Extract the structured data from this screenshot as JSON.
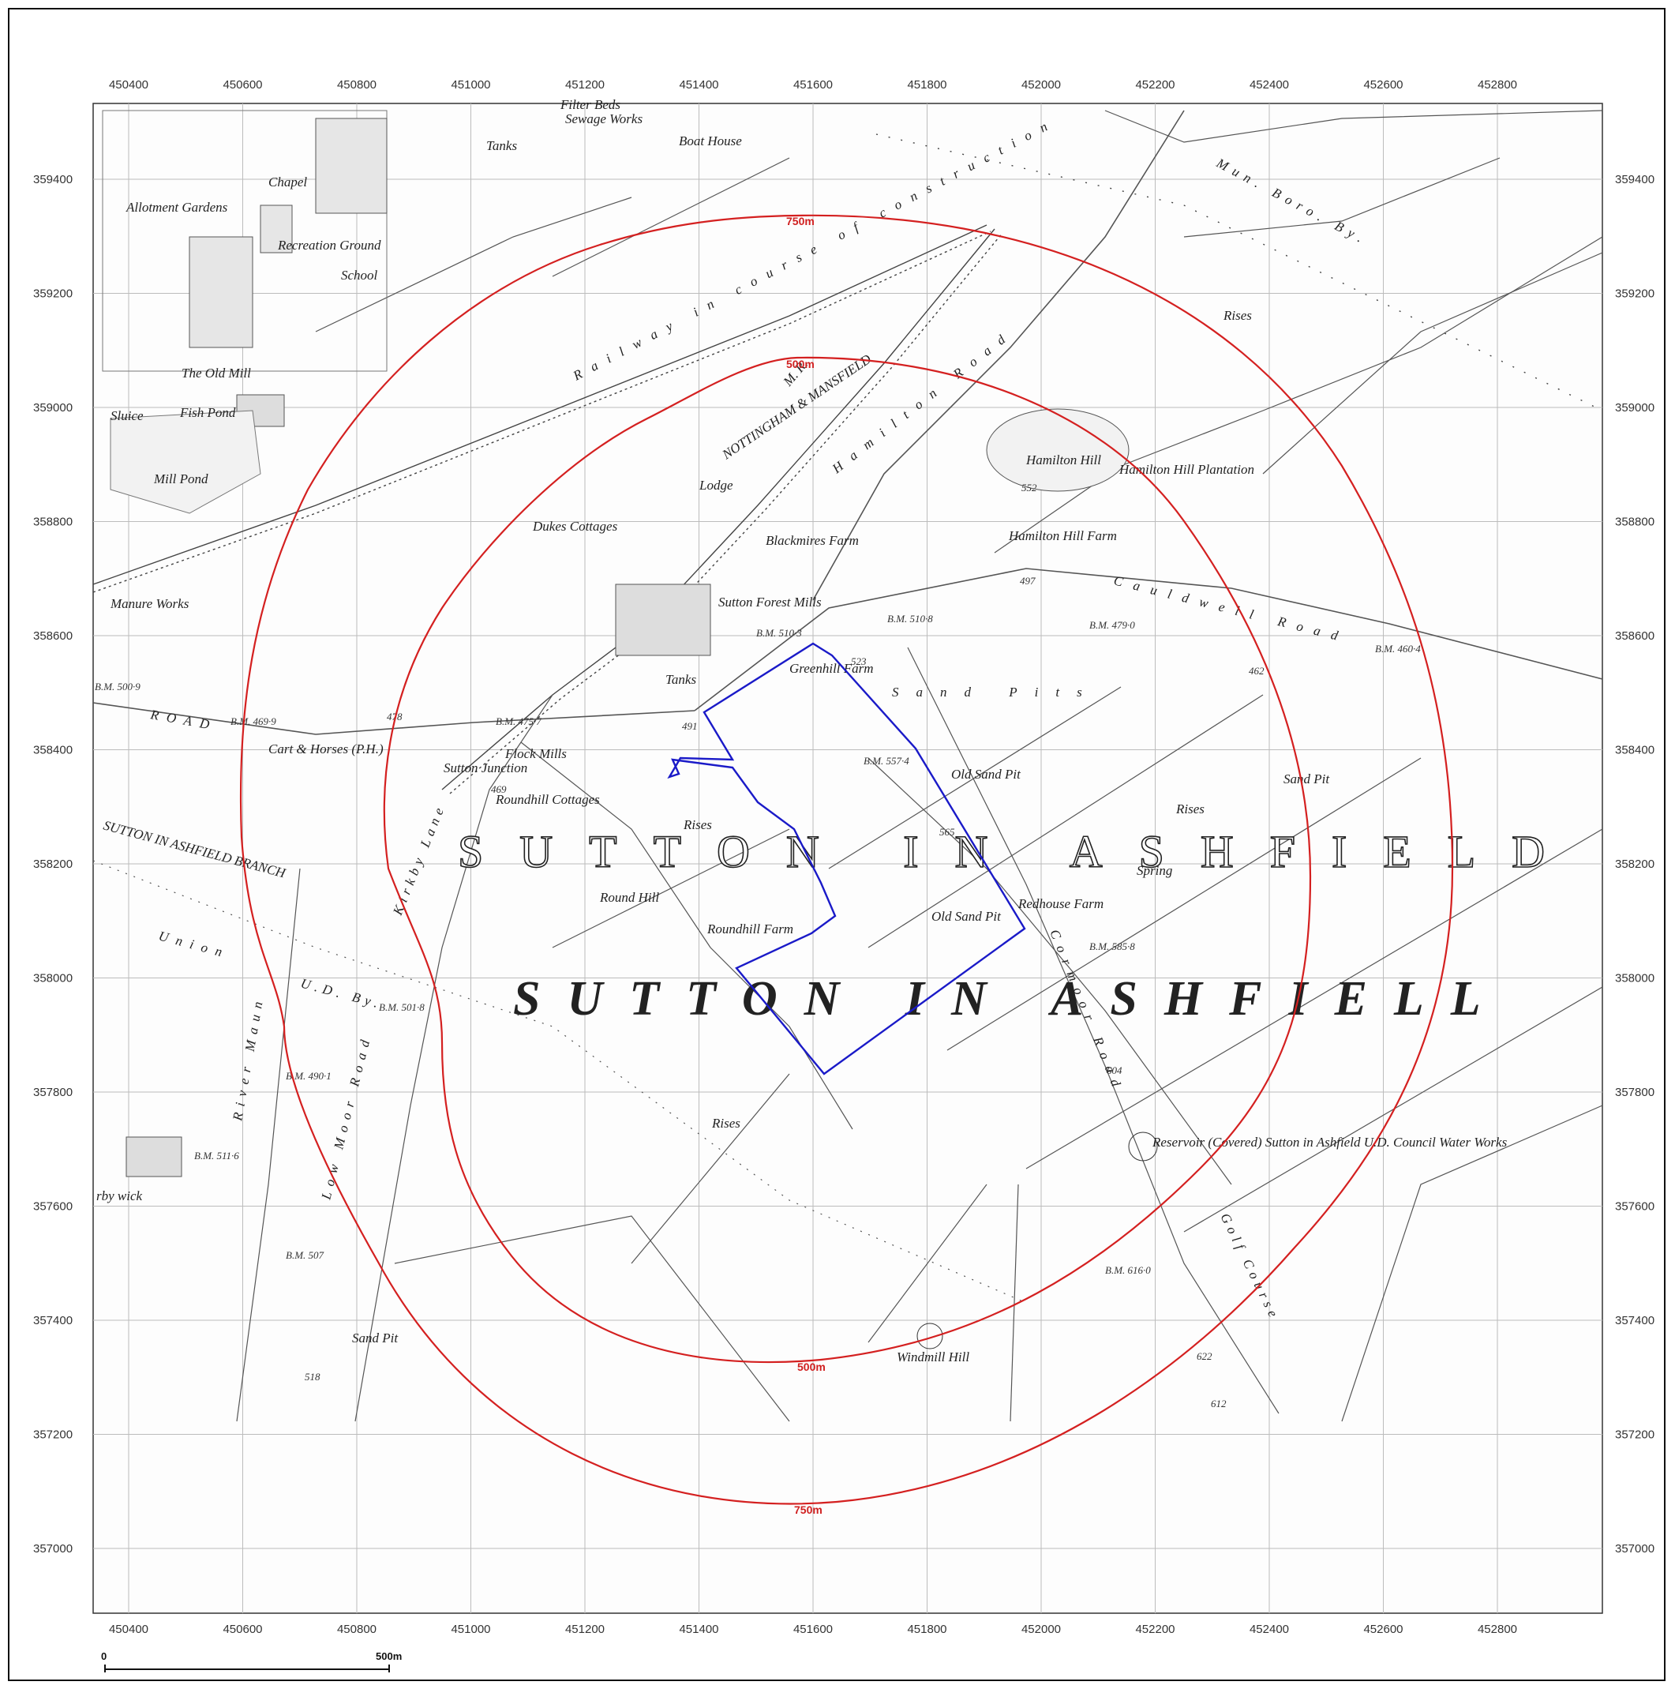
{
  "colors": {
    "buffer_ring": "#d42020",
    "site_boundary": "#1a1ac8",
    "grid": "#bcbcbc",
    "map_ink": "#444444"
  },
  "axes": {
    "x_ticks": [
      "450400",
      "450600",
      "450800",
      "451000",
      "451200",
      "451400",
      "451600",
      "451800",
      "452000",
      "452200",
      "452400",
      "452600",
      "452800"
    ],
    "y_ticks": [
      "359400",
      "359200",
      "359000",
      "358800",
      "358600",
      "358400",
      "358200",
      "358000",
      "357800",
      "357600",
      "357400",
      "357200",
      "357000"
    ]
  },
  "buffers": {
    "inner_label_top": "500m",
    "inner_label_bottom": "500m",
    "outer_label_top": "750m",
    "outer_label_bottom": "750m"
  },
  "scale_bar": {
    "start_label": "0",
    "end_label": "500m"
  },
  "map_labels": {
    "big_upright": "SUTTON IN ASHFIELD",
    "big_italic": "SUTTON IN ASHFIELL",
    "railway": "NOTTINGHAM & MANSFIELD",
    "mr": "M. R.",
    "sewage": "Sewage Works",
    "sewage_sub": "Sutton in Ashfield U.D. Council",
    "filter_beds": "Filter Beds",
    "tanks": "Tanks",
    "boat_house": "Boat House",
    "allotment": "Allotment Gardens",
    "chapel": "Chapel",
    "recreation": "Recreation Ground",
    "school": "School",
    "old_mill": "The Old Mill",
    "fish_pond": "Fish Pond",
    "mill_pond": "Mill Pond",
    "sluice": "Sluice",
    "manure": "Manure Works",
    "dukes": "Dukes Cottages",
    "lodge": "Lodge",
    "blackmires": "Blackmires Farm",
    "sutton_forest": "Sutton Forest Mills",
    "greenhill": "Greenhill Farm",
    "sand_pits": "Sand Pits",
    "old_sand_pit": "Old Sand Pit",
    "hamilton_hill": "Hamilton Hill",
    "hamilton_plantation": "Hamilton Hill Plantation",
    "hamilton_farm": "Hamilton Hill Farm",
    "hamilton_road": "Hamilton Road",
    "cauldwell_road": "Cauldwell Road",
    "flock_mills": "Flock Mills",
    "cart_horses": "Cart & Horses (P.H.)",
    "sutton_junction": "Sutton Junction",
    "roundhill_cottages": "Roundhill Cottages",
    "round_hill": "Round Hill",
    "roundhill_farm": "Roundhill Farm",
    "rises": "Rises",
    "redhouse": "Redhouse Farm",
    "spring": "Spring",
    "sand_pit": "Sand Pit",
    "kirkby_lane": "Kirkby Lane",
    "cormoor_road": "Cormoor Road",
    "low_moor_road": "Low Moor Road",
    "river_maun": "River Maun",
    "union": "Union",
    "ud_by": "U.D. By.",
    "muni_boro": "Mun. Boro. By.",
    "ud_by2": "U.D. By.",
    "railway_constr": "Railway in course of construction",
    "reservoir": "Reservoir (Covered) Sutton in Ashfield U.D. Council Water Works",
    "golf": "Golf Course",
    "windmill": "Windmill Hill",
    "road_word": "ROAD",
    "mr_branch": "SUTTON IN ASHFIELD BRANCH",
    "kirkby": "rby wick",
    "bm_1": "B.M. 510·3",
    "bm_2": "B.M. 510·8",
    "bm_3": "B.M. 479·0",
    "bm_4": "B.M. 460·4",
    "bm_5": "B.M. 557·4",
    "bm_6": "B.M. 585·8",
    "bm_7": "B.M. 616·0",
    "bm_8": "B.M. 501·8",
    "bm_9": "B.M. 490·1",
    "bm_10": "B.M. 469·9",
    "bm_11": "B.M. 475·7",
    "bm_12": "B.M. 500·9",
    "bm_13": "B.M. 507",
    "bm_14": "B.M. 511·6",
    "spot_1": "552",
    "spot_2": "497",
    "spot_3": "462",
    "spot_4": "523",
    "spot_5": "491",
    "spot_6": "565",
    "spot_7": "604",
    "spot_8": "622",
    "spot_9": "612",
    "spot_10": "518",
    "spot_11": "478",
    "spot_12": "469"
  }
}
